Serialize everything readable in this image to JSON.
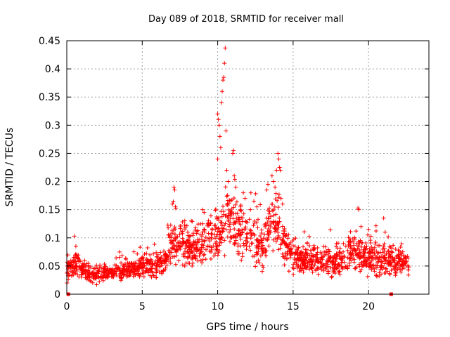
{
  "chart_data": {
    "type": "scatter",
    "title": "Day 089 of 2018, SRMTID for receiver mall",
    "xlabel": "GPS time / hours",
    "ylabel": "SRMTID / TECUs",
    "xlim": [
      0,
      24
    ],
    "ylim": [
      0,
      0.45
    ],
    "xticks": [
      0,
      5,
      10,
      15,
      20
    ],
    "xtick_labels": [
      "0",
      "5",
      "10",
      "15",
      "20"
    ],
    "yticks": [
      0,
      0.05,
      0.1,
      0.15,
      0.2,
      0.25,
      0.3,
      0.35,
      0.4,
      0.45
    ],
    "ytick_labels": [
      "0",
      "0.05",
      "0.1",
      "0.15",
      "0.2",
      "0.25",
      "0.3",
      "0.35",
      "0.4",
      "0.45"
    ],
    "grid": true,
    "marker": "plus",
    "marker_color": "#ff0000",
    "envelope": [
      {
        "x": 0.0,
        "base": 0.045,
        "spread": 0.02
      },
      {
        "x": 0.5,
        "base": 0.05,
        "spread": 0.025
      },
      {
        "x": 1.0,
        "base": 0.045,
        "spread": 0.02
      },
      {
        "x": 1.5,
        "base": 0.035,
        "spread": 0.015
      },
      {
        "x": 2.0,
        "base": 0.035,
        "spread": 0.015
      },
      {
        "x": 3.0,
        "base": 0.038,
        "spread": 0.015
      },
      {
        "x": 4.0,
        "base": 0.042,
        "spread": 0.015
      },
      {
        "x": 5.0,
        "base": 0.05,
        "spread": 0.02
      },
      {
        "x": 6.0,
        "base": 0.05,
        "spread": 0.02
      },
      {
        "x": 6.5,
        "base": 0.06,
        "spread": 0.025
      },
      {
        "x": 7.0,
        "base": 0.09,
        "spread": 0.04
      },
      {
        "x": 7.5,
        "base": 0.09,
        "spread": 0.04
      },
      {
        "x": 8.0,
        "base": 0.08,
        "spread": 0.035
      },
      {
        "x": 8.5,
        "base": 0.085,
        "spread": 0.03
      },
      {
        "x": 9.0,
        "base": 0.09,
        "spread": 0.035
      },
      {
        "x": 9.5,
        "base": 0.1,
        "spread": 0.04
      },
      {
        "x": 10.0,
        "base": 0.1,
        "spread": 0.04
      },
      {
        "x": 10.5,
        "base": 0.13,
        "spread": 0.05
      },
      {
        "x": 11.0,
        "base": 0.13,
        "spread": 0.05
      },
      {
        "x": 11.5,
        "base": 0.1,
        "spread": 0.045
      },
      {
        "x": 12.0,
        "base": 0.11,
        "spread": 0.045
      },
      {
        "x": 12.5,
        "base": 0.09,
        "spread": 0.04
      },
      {
        "x": 13.0,
        "base": 0.075,
        "spread": 0.035
      },
      {
        "x": 13.5,
        "base": 0.14,
        "spread": 0.05
      },
      {
        "x": 14.0,
        "base": 0.12,
        "spread": 0.05
      },
      {
        "x": 14.5,
        "base": 0.08,
        "spread": 0.035
      },
      {
        "x": 15.0,
        "base": 0.065,
        "spread": 0.025
      },
      {
        "x": 16.0,
        "base": 0.06,
        "spread": 0.025
      },
      {
        "x": 17.0,
        "base": 0.06,
        "spread": 0.025
      },
      {
        "x": 18.0,
        "base": 0.055,
        "spread": 0.025
      },
      {
        "x": 19.0,
        "base": 0.08,
        "spread": 0.035
      },
      {
        "x": 19.5,
        "base": 0.07,
        "spread": 0.03
      },
      {
        "x": 20.0,
        "base": 0.06,
        "spread": 0.03
      },
      {
        "x": 21.0,
        "base": 0.06,
        "spread": 0.03
      },
      {
        "x": 22.0,
        "base": 0.055,
        "spread": 0.025
      },
      {
        "x": 22.7,
        "base": 0.055,
        "spread": 0.025
      }
    ],
    "peaks": [
      {
        "x": 7.1,
        "y": 0.19
      },
      {
        "x": 7.15,
        "y": 0.185
      },
      {
        "x": 7.0,
        "y": 0.16
      },
      {
        "x": 7.2,
        "y": 0.155
      },
      {
        "x": 9.0,
        "y": 0.15
      },
      {
        "x": 9.1,
        "y": 0.145
      },
      {
        "x": 10.0,
        "y": 0.32
      },
      {
        "x": 10.05,
        "y": 0.31
      },
      {
        "x": 10.1,
        "y": 0.3
      },
      {
        "x": 10.15,
        "y": 0.28
      },
      {
        "x": 10.2,
        "y": 0.26
      },
      {
        "x": 10.25,
        "y": 0.34
      },
      {
        "x": 10.3,
        "y": 0.36
      },
      {
        "x": 10.35,
        "y": 0.38
      },
      {
        "x": 10.4,
        "y": 0.385
      },
      {
        "x": 10.45,
        "y": 0.41
      },
      {
        "x": 10.5,
        "y": 0.437
      },
      {
        "x": 10.55,
        "y": 0.29
      },
      {
        "x": 10.6,
        "y": 0.22
      },
      {
        "x": 10.0,
        "y": 0.24
      },
      {
        "x": 10.7,
        "y": 0.2
      },
      {
        "x": 11.0,
        "y": 0.25
      },
      {
        "x": 11.05,
        "y": 0.255
      },
      {
        "x": 11.1,
        "y": 0.21
      },
      {
        "x": 11.2,
        "y": 0.19
      },
      {
        "x": 11.7,
        "y": 0.18
      },
      {
        "x": 12.2,
        "y": 0.18
      },
      {
        "x": 12.4,
        "y": 0.165
      },
      {
        "x": 12.6,
        "y": 0.155
      },
      {
        "x": 13.6,
        "y": 0.21
      },
      {
        "x": 13.7,
        "y": 0.2
      },
      {
        "x": 13.8,
        "y": 0.19
      },
      {
        "x": 13.9,
        "y": 0.22
      },
      {
        "x": 14.0,
        "y": 0.25
      },
      {
        "x": 14.05,
        "y": 0.24
      },
      {
        "x": 14.1,
        "y": 0.225
      },
      {
        "x": 14.15,
        "y": 0.22
      },
      {
        "x": 14.2,
        "y": 0.17
      },
      {
        "x": 14.3,
        "y": 0.16
      },
      {
        "x": 19.3,
        "y": 0.153
      },
      {
        "x": 19.35,
        "y": 0.15
      },
      {
        "x": 19.5,
        "y": 0.12
      },
      {
        "x": 20.0,
        "y": 0.115
      },
      {
        "x": 21.0,
        "y": 0.135
      },
      {
        "x": 21.1,
        "y": 0.11
      },
      {
        "x": 3.5,
        "y": 0.075
      },
      {
        "x": 0.5,
        "y": 0.103
      },
      {
        "x": 0.6,
        "y": 0.085
      }
    ],
    "zero_markers": [
      {
        "x": 0.1,
        "y": 0.0
      },
      {
        "x": 21.5,
        "y": 0.0
      }
    ],
    "point_count": 1800
  }
}
